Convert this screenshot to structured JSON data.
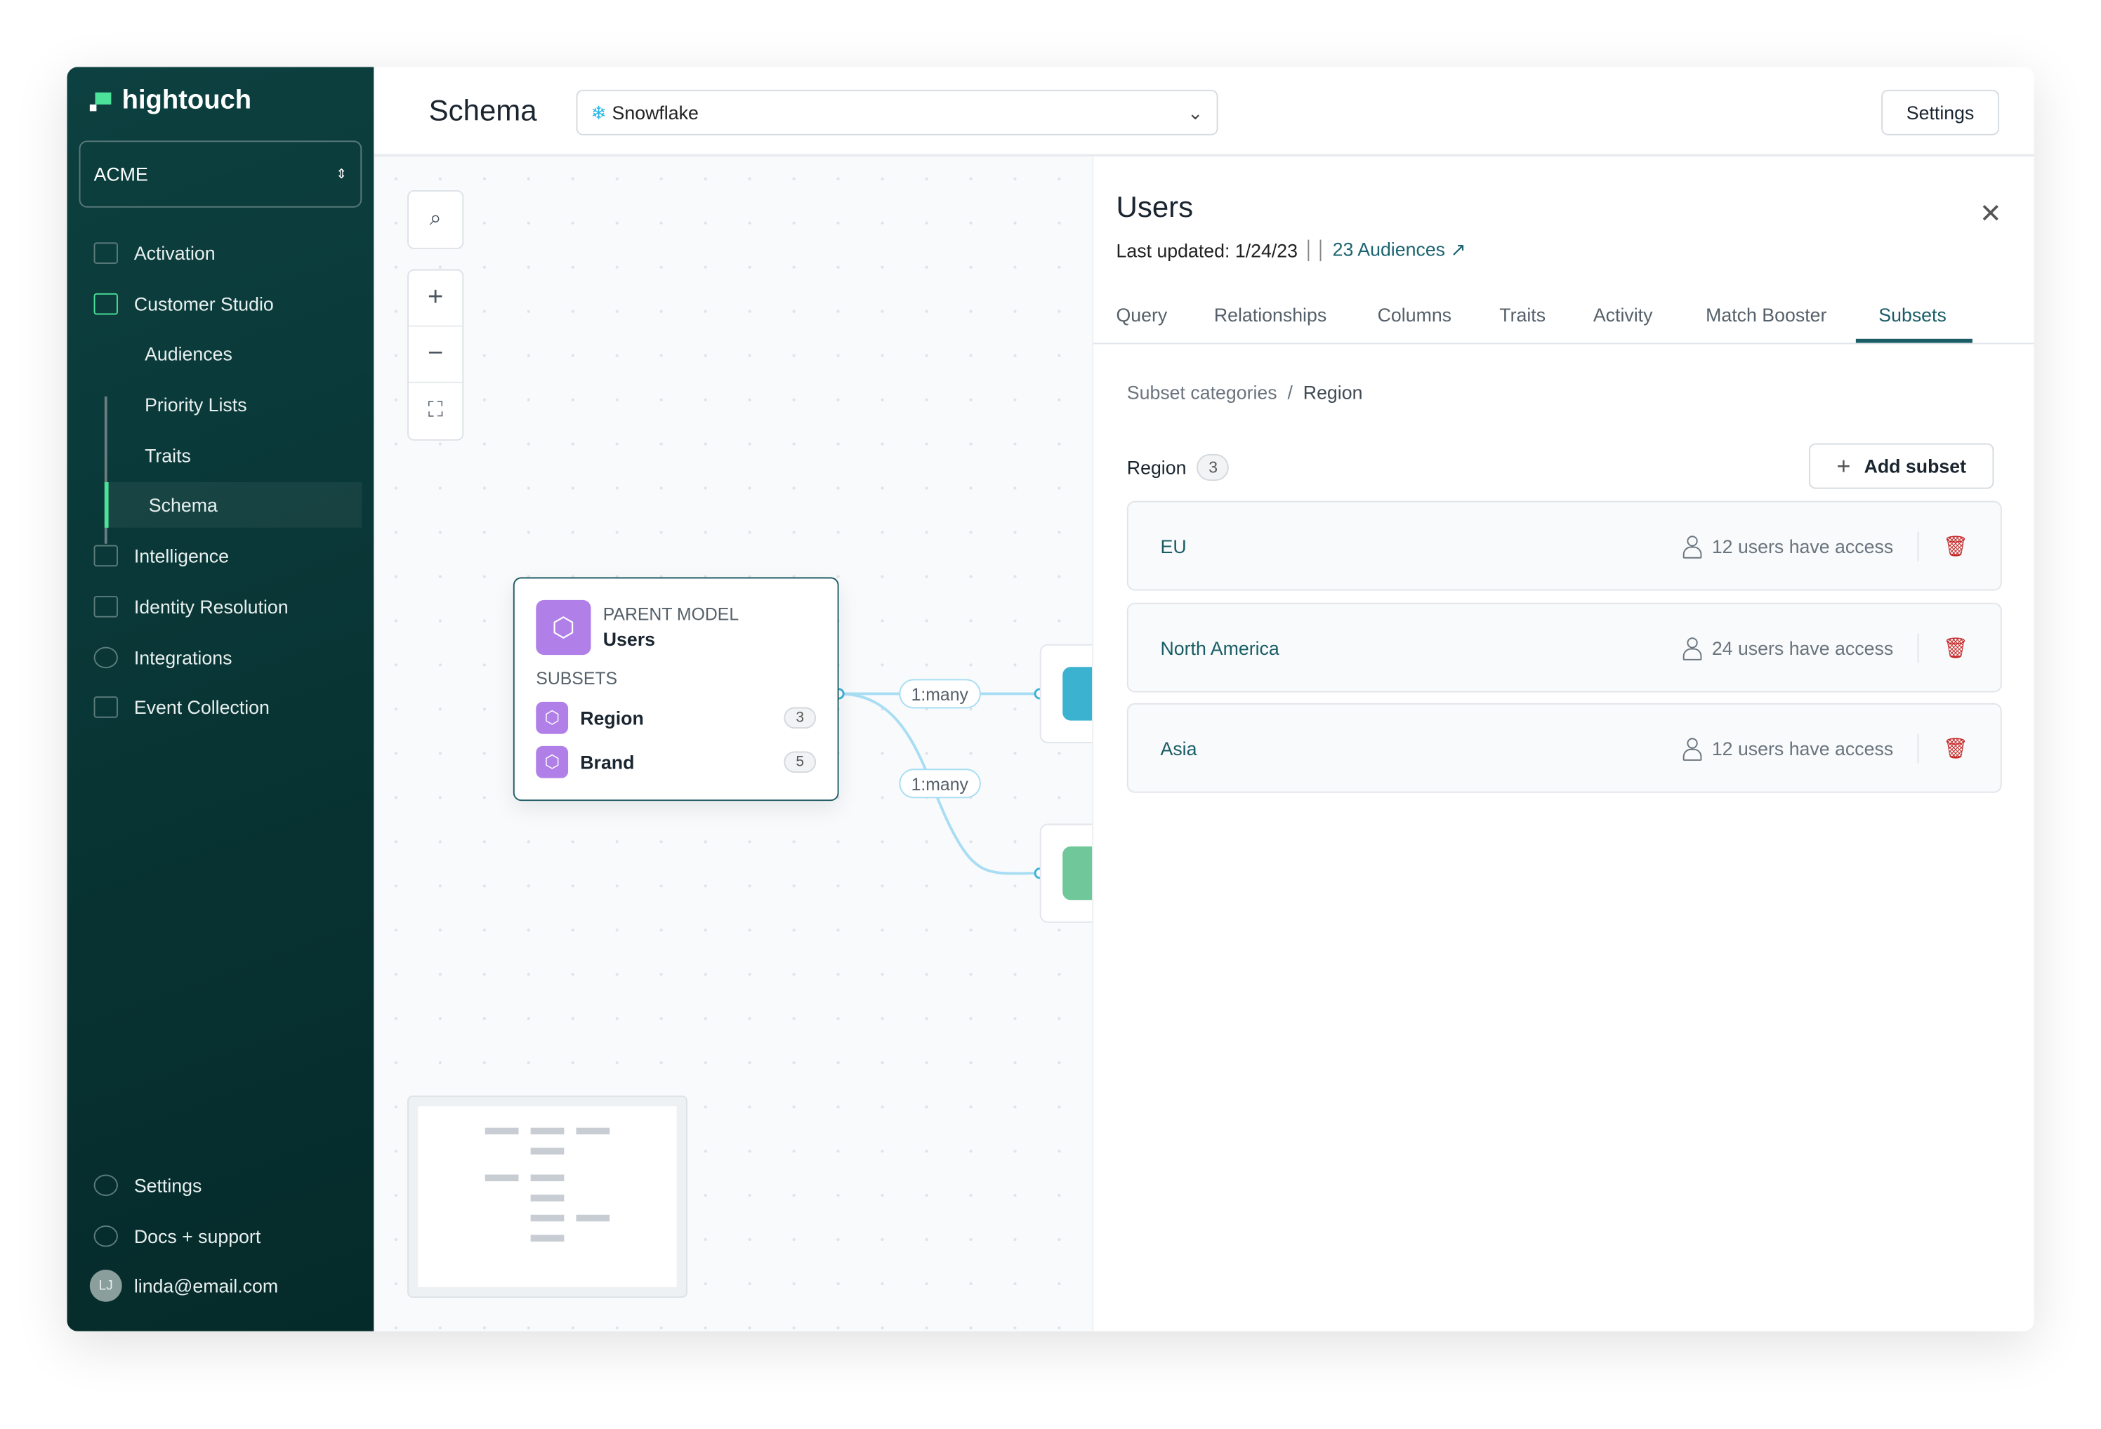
{
  "sidebar": {
    "brand": "hightouch",
    "workspace": "ACME",
    "items": [
      {
        "label": "Activation",
        "icon": "activation-icon"
      },
      {
        "label": "Customer Studio",
        "icon": "customer-studio-icon"
      },
      {
        "label": "Audiences"
      },
      {
        "label": "Priority Lists"
      },
      {
        "label": "Traits"
      },
      {
        "label": "Schema",
        "active": true
      },
      {
        "label": "Intelligence",
        "icon": "intelligence-icon"
      },
      {
        "label": "Identity Resolution",
        "icon": "identity-icon"
      },
      {
        "label": "Integrations",
        "icon": "integrations-icon"
      },
      {
        "label": "Event Collection",
        "icon": "event-collection-icon"
      }
    ],
    "footer": {
      "settings": "Settings",
      "docs": "Docs + support",
      "user_initials": "LJ",
      "user_email": "linda@email.com"
    }
  },
  "header": {
    "title": "Schema",
    "source": "Snowflake",
    "settings": "Settings"
  },
  "canvas": {
    "node": {
      "type_label": "PARENT MODEL",
      "name": "Users",
      "subsets_label": "SUBSETS",
      "subsets": [
        {
          "name": "Region",
          "count": "3"
        },
        {
          "name": "Brand",
          "count": "5"
        }
      ]
    },
    "relations": [
      "1:many",
      "1:many"
    ],
    "accent": "#b07fe8"
  },
  "panel": {
    "title": "Users",
    "last_updated": "Last updated: 1/24/23",
    "audiences_link": "23 Audiences",
    "tabs": [
      "Query",
      "Relationships",
      "Columns",
      "Traits",
      "Activity",
      "Match Booster",
      "Subsets"
    ],
    "active_tab": "Subsets",
    "breadcrumb": {
      "root": "Subset categories",
      "sep": "/",
      "current": "Region"
    },
    "category": {
      "name": "Region",
      "count": "3"
    },
    "add_button": "Add subset",
    "subsets": [
      {
        "name": "EU",
        "access": "12 users have access"
      },
      {
        "name": "North America",
        "access": "24 users have access"
      },
      {
        "name": "Asia",
        "access": "12 users have access"
      }
    ]
  },
  "colors": {
    "sidebar": "#0d4040",
    "accent": "#1a5d66",
    "delete": "#c62828"
  }
}
